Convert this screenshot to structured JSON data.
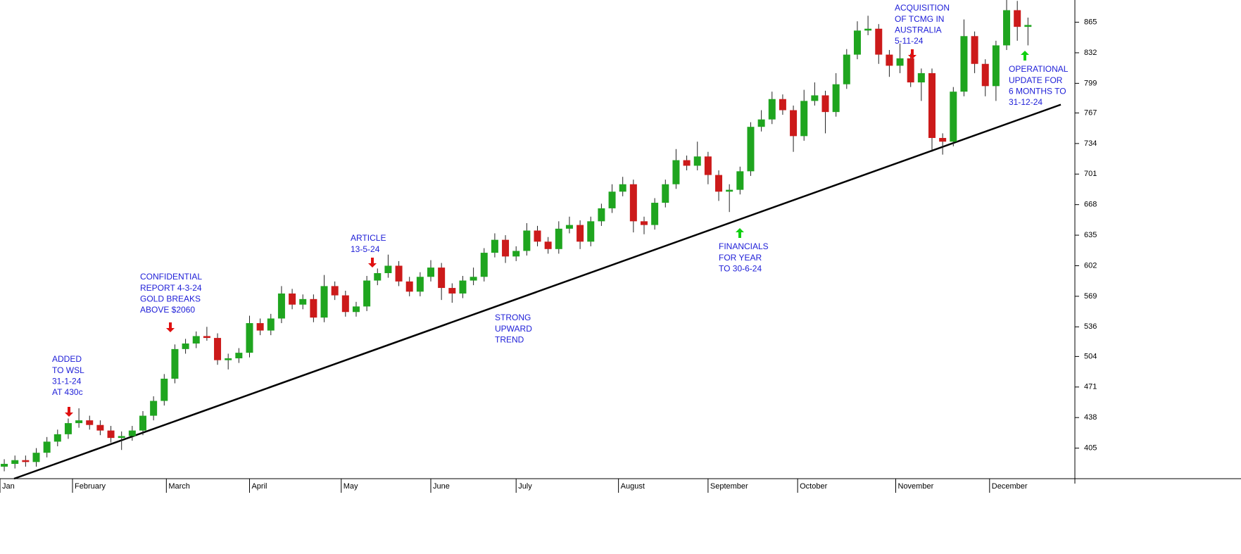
{
  "chart_data": {
    "type": "candlestick",
    "up_color": "#1fa51f",
    "down_color": "#cc1a1a",
    "xlim": [
      0,
      252
    ],
    "xticks": [
      {
        "value": 0,
        "label": "Jan"
      },
      {
        "value": 17,
        "label": "February"
      },
      {
        "value": 39,
        "label": "March"
      },
      {
        "value": 58.5,
        "label": "April"
      },
      {
        "value": 80,
        "label": "May"
      },
      {
        "value": 101,
        "label": "June"
      },
      {
        "value": 121,
        "label": "July"
      },
      {
        "value": 145,
        "label": "August"
      },
      {
        "value": 166,
        "label": "September"
      },
      {
        "value": 187,
        "label": "October"
      },
      {
        "value": 210,
        "label": "November"
      },
      {
        "value": 232,
        "label": "December"
      }
    ],
    "ylim": [
      372,
      889
    ],
    "yticks": [
      405,
      438,
      471,
      504,
      536,
      569,
      602,
      635,
      668,
      701,
      734,
      767,
      799,
      832,
      865
    ],
    "x": [
      1,
      3.5,
      6,
      8.5,
      11,
      13.5,
      16,
      18.5,
      21,
      23.5,
      26,
      28.5,
      31,
      33.5,
      36,
      38.5,
      41,
      43.5,
      46,
      48.5,
      51,
      53.5,
      56,
      58.5,
      61,
      63.5,
      66,
      68.5,
      71,
      73.5,
      76,
      78.5,
      81,
      83.5,
      86,
      88.5,
      91,
      93.5,
      96,
      98.5,
      101,
      103.5,
      106,
      108.5,
      111,
      113.5,
      116,
      118.5,
      121,
      123.5,
      126,
      128.5,
      131,
      133.5,
      136,
      138.5,
      141,
      143.5,
      146,
      148.5,
      151,
      153.5,
      156,
      158.5,
      161,
      163.5,
      166,
      168.5,
      171,
      173.5,
      176,
      178.5,
      181,
      183.5,
      186,
      188.5,
      191,
      193.5,
      196,
      198.5,
      201,
      203.5,
      206,
      208.5,
      211,
      213.5,
      216,
      218.5,
      221,
      223.5,
      226,
      228.5,
      231,
      233.5,
      236,
      238.5,
      241
    ],
    "open": [
      385,
      388,
      392,
      390,
      400,
      412,
      420,
      432,
      435,
      430,
      424,
      416,
      418,
      424,
      440,
      456,
      480,
      512,
      518,
      526,
      524,
      500,
      502,
      508,
      540,
      532,
      545,
      572,
      560,
      566,
      546,
      580,
      570,
      552,
      558,
      586,
      594,
      602,
      585,
      574,
      590,
      600,
      578,
      572,
      586,
      590,
      616,
      630,
      612,
      618,
      640,
      628,
      620,
      642,
      646,
      628,
      650,
      664,
      682,
      690,
      650,
      646,
      670,
      690,
      716,
      710,
      720,
      700,
      682,
      684,
      704,
      752,
      760,
      782,
      770,
      742,
      780,
      786,
      768,
      798,
      830,
      856,
      858,
      830,
      818,
      826,
      800,
      810,
      740,
      736,
      790,
      850,
      820,
      796,
      840,
      878,
      860
    ],
    "high": [
      393,
      397,
      397,
      405,
      417,
      425,
      437,
      448,
      440,
      435,
      429,
      423,
      429,
      445,
      461,
      485,
      517,
      523,
      531,
      536,
      529,
      507,
      513,
      548,
      545,
      550,
      580,
      577,
      571,
      571,
      592,
      585,
      575,
      563,
      591,
      599,
      614,
      607,
      590,
      595,
      608,
      605,
      583,
      591,
      600,
      621,
      637,
      635,
      623,
      648,
      645,
      633,
      650,
      655,
      651,
      655,
      669,
      690,
      698,
      695,
      655,
      675,
      695,
      728,
      721,
      736,
      725,
      705,
      690,
      709,
      757,
      770,
      790,
      787,
      775,
      792,
      800,
      791,
      810,
      836,
      866,
      872,
      863,
      835,
      842,
      831,
      815,
      815,
      745,
      795,
      868,
      855,
      825,
      845,
      889,
      888,
      870
    ],
    "low": [
      380,
      383,
      385,
      385,
      395,
      407,
      415,
      427,
      425,
      419,
      411,
      403,
      413,
      419,
      435,
      451,
      475,
      507,
      513,
      521,
      495,
      490,
      497,
      503,
      527,
      527,
      540,
      555,
      555,
      541,
      541,
      565,
      547,
      547,
      553,
      581,
      589,
      580,
      569,
      569,
      585,
      565,
      562,
      567,
      581,
      585,
      611,
      605,
      607,
      613,
      623,
      615,
      615,
      637,
      620,
      623,
      645,
      659,
      677,
      638,
      636,
      641,
      665,
      685,
      705,
      705,
      690,
      672,
      660,
      679,
      699,
      747,
      755,
      765,
      725,
      737,
      775,
      745,
      763,
      793,
      825,
      851,
      820,
      806,
      810,
      795,
      780,
      725,
      722,
      731,
      785,
      810,
      785,
      780,
      835,
      845,
      840
    ],
    "close": [
      388,
      392,
      390,
      400,
      412,
      420,
      432,
      435,
      430,
      424,
      416,
      418,
      424,
      440,
      456,
      480,
      512,
      518,
      526,
      524,
      500,
      502,
      508,
      540,
      532,
      545,
      572,
      560,
      566,
      546,
      580,
      570,
      552,
      558,
      586,
      594,
      602,
      585,
      574,
      590,
      600,
      578,
      572,
      586,
      590,
      616,
      630,
      612,
      618,
      640,
      628,
      620,
      642,
      646,
      628,
      650,
      664,
      682,
      690,
      650,
      646,
      670,
      690,
      716,
      710,
      720,
      700,
      682,
      684,
      704,
      752,
      760,
      782,
      770,
      742,
      780,
      786,
      768,
      798,
      830,
      856,
      858,
      830,
      818,
      826,
      800,
      810,
      740,
      736,
      790,
      850,
      820,
      796,
      840,
      878,
      860,
      862
    ],
    "trendline": {
      "x": [
        3.3,
        248.7
      ],
      "values": [
        372,
        776
      ]
    },
    "annotations": [
      {
        "lines": [
          "ADDED",
          "TO WSL",
          "31-1-24",
          "AT 430c"
        ],
        "color": "#e01010"
      },
      {
        "lines": [
          "CONFIDENTIAL",
          "REPORT 4-3-24",
          "GOLD BREAKS",
          "ABOVE $2060"
        ],
        "color": "#e01010"
      },
      {
        "lines": [
          "ARTICLE",
          "13-5-24"
        ],
        "color": "#e01010"
      },
      {
        "lines": [
          "STRONG",
          "UPWARD",
          "TREND"
        ]
      },
      {
        "lines": [
          "FINANCIALS",
          "FOR YEAR",
          "TO 30-6-24"
        ],
        "color": "#10d010"
      },
      {
        "lines": [
          "ACQUISITION",
          "OF TCMG IN",
          "AUSTRALIA",
          "5-11-24"
        ],
        "color": "#e01010"
      },
      {
        "lines": [
          "OPERATIONAL",
          "UPDATE FOR",
          "6 MONTHS TO",
          "31-12-24"
        ],
        "color": "#10d010"
      }
    ]
  }
}
